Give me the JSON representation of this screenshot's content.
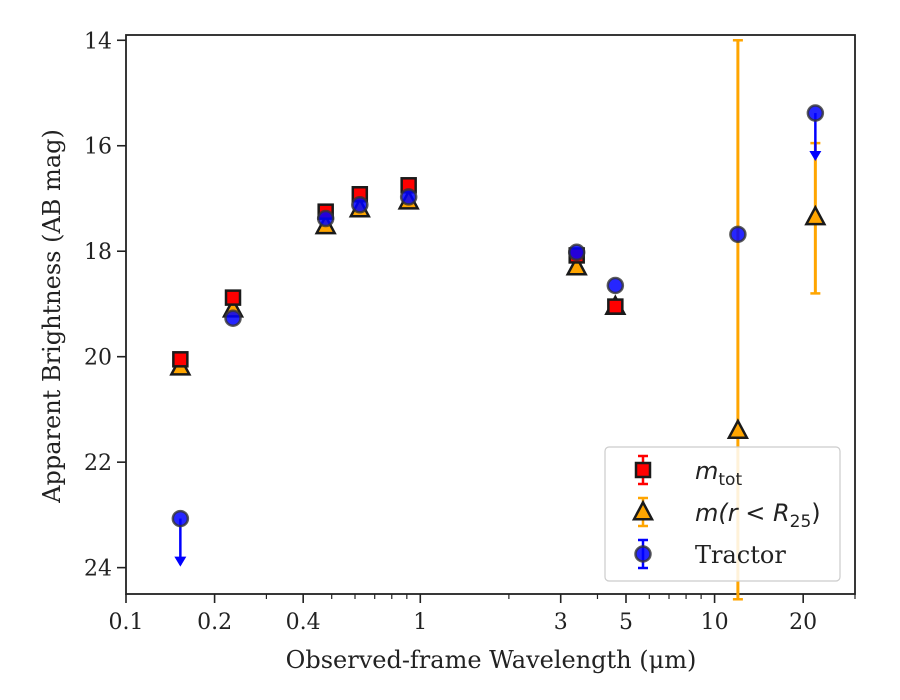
{
  "chart_data": {
    "type": "scatter",
    "xlabel": "Observed-frame Wavelength (μm)",
    "ylabel": "Apparent Brightness (AB mag)",
    "x_scale": "log",
    "xlim": [
      0.1,
      30
    ],
    "ylim": [
      24.5,
      13.9
    ],
    "y_inverted": true,
    "x_ticks": [
      {
        "value": 0.1,
        "label": "0.1"
      },
      {
        "value": 0.2,
        "label": "0.2"
      },
      {
        "value": 0.4,
        "label": "0.4"
      },
      {
        "value": 1,
        "label": "1"
      },
      {
        "value": 3,
        "label": "3"
      },
      {
        "value": 5,
        "label": "5"
      },
      {
        "value": 10,
        "label": "10"
      },
      {
        "value": 20,
        "label": "20"
      }
    ],
    "y_ticks": [
      {
        "value": 14,
        "label": "14"
      },
      {
        "value": 16,
        "label": "16"
      },
      {
        "value": 18,
        "label": "18"
      },
      {
        "value": 20,
        "label": "20"
      },
      {
        "value": 22,
        "label": "22"
      },
      {
        "value": 24,
        "label": "24"
      }
    ],
    "legend_position": "bottom-right",
    "series": [
      {
        "name": "m_tot",
        "marker": "square",
        "color": "#ff0000",
        "ecolor": "#ff0000",
        "points": [
          {
            "x": 0.153,
            "y": 20.05
          },
          {
            "x": 0.231,
            "y": 18.88
          },
          {
            "x": 0.477,
            "y": 17.25
          },
          {
            "x": 0.623,
            "y": 16.92
          },
          {
            "x": 0.913,
            "y": 16.75
          },
          {
            "x": 3.4,
            "y": 18.08
          },
          {
            "x": 4.6,
            "y": 19.05
          }
        ]
      },
      {
        "name": "m(r < R25)",
        "marker": "triangle",
        "color": "#ffa500",
        "ecolor": "#ffa500",
        "points": [
          {
            "x": 0.153,
            "y": 20.2
          },
          {
            "x": 0.231,
            "y": 19.1
          },
          {
            "x": 0.477,
            "y": 17.52
          },
          {
            "x": 0.623,
            "y": 17.2
          },
          {
            "x": 0.913,
            "y": 17.05
          },
          {
            "x": 3.4,
            "y": 18.3
          },
          {
            "x": 4.6,
            "y": 19.05
          },
          {
            "x": 12.0,
            "y": 21.4,
            "yerr_low": 14.0,
            "yerr_high": 24.6
          },
          {
            "x": 22.0,
            "y": 17.35,
            "yerr_low": 15.95,
            "yerr_high": 18.8
          }
        ]
      },
      {
        "name": "Tractor",
        "marker": "circle",
        "color": "#0000ff",
        "ecolor": "#0000ff",
        "points": [
          {
            "x": 0.153,
            "y": 23.07,
            "upper_limit": true
          },
          {
            "x": 0.231,
            "y": 19.27
          },
          {
            "x": 0.477,
            "y": 17.38
          },
          {
            "x": 0.623,
            "y": 17.12
          },
          {
            "x": 0.913,
            "y": 16.97
          },
          {
            "x": 3.4,
            "y": 18.02
          },
          {
            "x": 4.6,
            "y": 18.65
          },
          {
            "x": 12.0,
            "y": 17.68
          },
          {
            "x": 22.0,
            "y": 15.38,
            "upper_limit": true
          }
        ]
      }
    ],
    "legend": [
      {
        "label_main": "m",
        "label_sub": "tot",
        "series": "m_tot"
      },
      {
        "label_main": "m(r < R",
        "label_sub": "25",
        "label_tail": ")",
        "series": "m(r < R25)"
      },
      {
        "label_main": "Tractor",
        "series": "Tractor"
      }
    ]
  }
}
